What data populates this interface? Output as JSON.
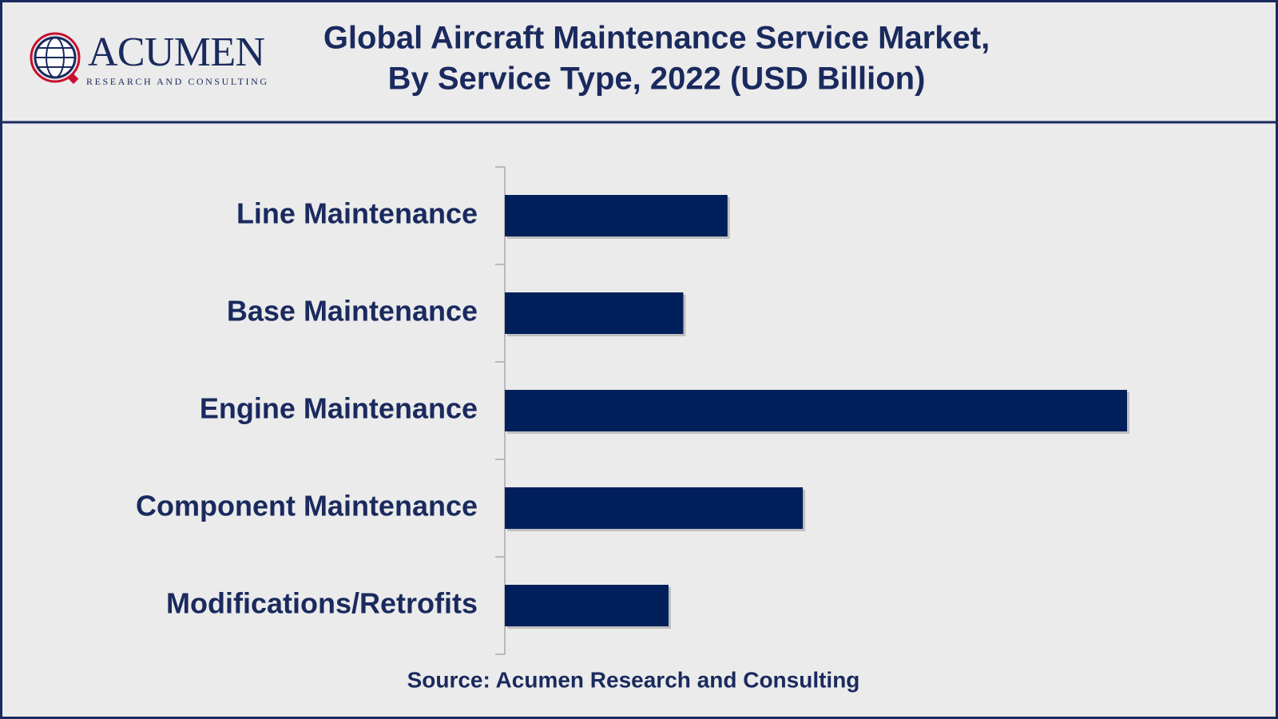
{
  "logo": {
    "name": "ACUMEN",
    "tagline": "RESEARCH AND CONSULTING"
  },
  "chart_data": {
    "type": "bar",
    "orientation": "horizontal",
    "title": [
      "Global Aircraft Maintenance Service Market,",
      "By Service Type, 2022 (USD Billion)"
    ],
    "categories": [
      "Line Maintenance",
      "Base Maintenance",
      "Engine Maintenance",
      "Component Maintenance",
      "Modifications/Retrofits"
    ],
    "values": [
      13.6,
      10.9,
      38,
      18.2,
      10
    ],
    "color": "#001f5b",
    "xlim": [
      0,
      40
    ],
    "source": "Source: Acumen Research and Consulting"
  }
}
